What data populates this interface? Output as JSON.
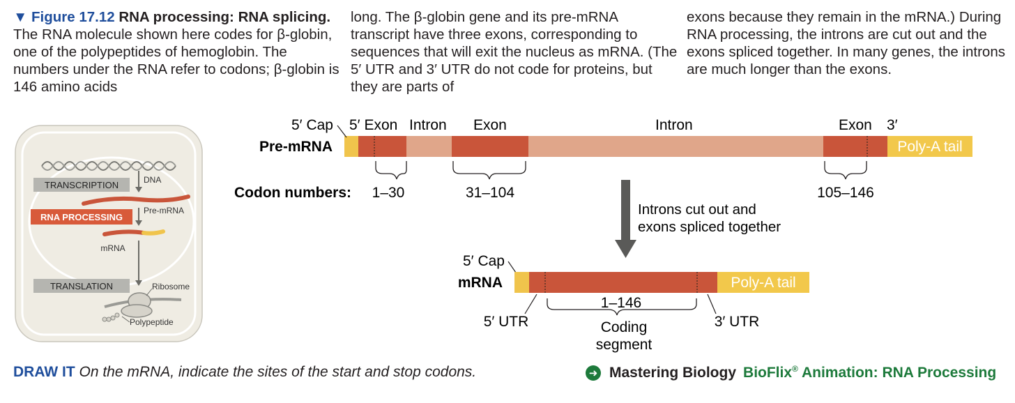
{
  "caption": {
    "figure_label": "▼ Figure 17.12",
    "title": "RNA processing: RNA splicing.",
    "text1": " The RNA molecule shown here codes for β-globin, one of the polypeptides of hemoglobin. The numbers under the RNA refer to codons; β-globin is 146 amino acids",
    "text2": "long. The β-globin gene and its pre-mRNA transcript have three exons, corresponding to sequences that will exit the nucleus as mRNA. (The 5′ UTR and 3′ UTR do not code for proteins, but they are parts of",
    "text3": "exons because they remain in the mRNA.) During RNA processing, the introns are cut out and the exons spliced together. In many genes, the introns are much longer than the exons."
  },
  "overview": {
    "dna": "DNA",
    "transcription": "TRANSCRIPTION",
    "pre_mrna": "Pre-mRNA",
    "rna_processing": "RNA PROCESSING",
    "mrna": "mRNA",
    "translation": "TRANSLATION",
    "ribosome": "Ribosome",
    "polypeptide": "Polypeptide"
  },
  "pre_mrna": {
    "label": "Pre-mRNA",
    "cap": "5′ Cap",
    "exon1": "5′ Exon",
    "intron1": "Intron",
    "exon2": "Exon",
    "intron2": "Intron",
    "exon3": "Exon",
    "three_prime": "3′",
    "poly_a": "Poly-A tail"
  },
  "codons": {
    "label": "Codon numbers:",
    "c1": "1–30",
    "c2": "31–104",
    "c3": "105–146"
  },
  "arrow_note": {
    "line1": "Introns cut out and",
    "line2": "exons spliced together"
  },
  "mrna": {
    "label": "mRNA",
    "cap": "5′ Cap",
    "poly_a": "Poly-A tail",
    "codons": "1–146",
    "utr5": "5′ UTR",
    "utr3": "3′ UTR",
    "coding1": "Coding",
    "coding2": "segment"
  },
  "footer": {
    "draw_label": "DRAW IT",
    "draw_text": "On the mRNA, indicate the sites of the start and stop codons.",
    "mastering": "Mastering Biology",
    "bioflix": "BioFlix",
    "reg": "®",
    "animation": "Animation: RNA Processing"
  },
  "colors": {
    "exon": "#c9553a",
    "intron": "#e0a68a",
    "cap": "#f0c44c",
    "poly_a": "#f2c84b",
    "rna_processing_bg": "#d85a3a",
    "step_bg": "#b5b5b0",
    "panel_bg": "#efece3",
    "fig_blue": "#1f4e9c",
    "bio_green": "#1d7a3b"
  }
}
